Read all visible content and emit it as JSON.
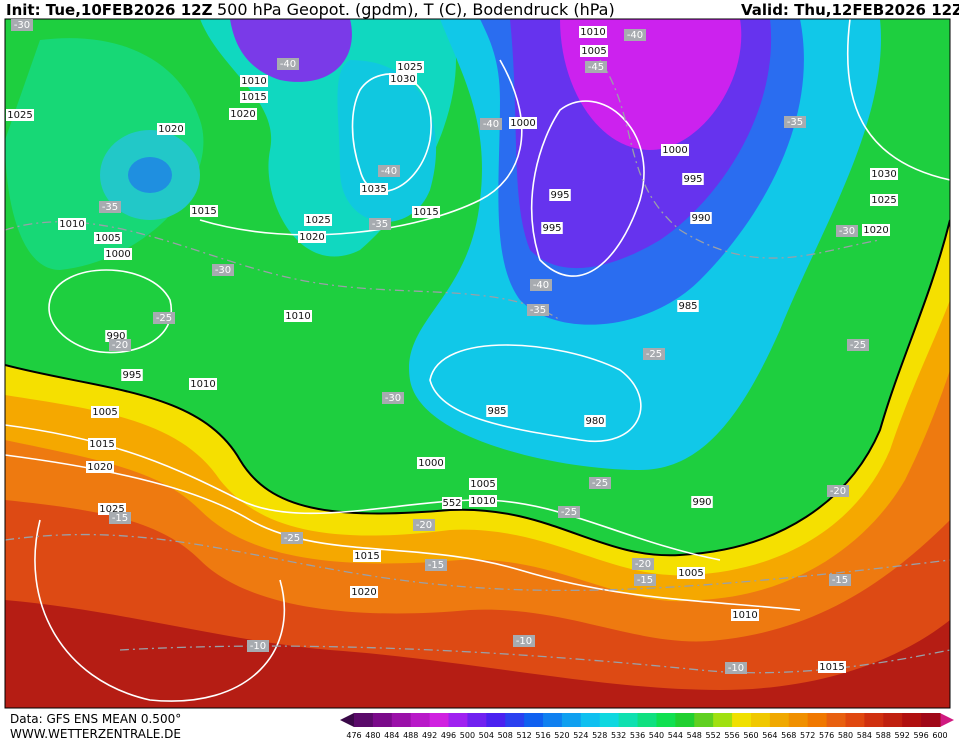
{
  "header": {
    "init": "Init: Tue,10FEB2026 12Z",
    "title": "500 hPa Geopot. (gpdm), T (C), Bodendruck (hPa)",
    "valid": "Valid: Thu,12FEB2026 12Z"
  },
  "footer": {
    "source": "Data: GFS ENS MEAN 0.500°",
    "website": "WWW.WETTERZENTRALE.DE"
  },
  "pressure_labels": [
    "1010",
    "1005",
    "1025",
    "1030",
    "1010",
    "1015",
    "1020",
    "1025",
    "1020",
    "1000",
    "1000",
    "995",
    "1030",
    "1025",
    "1035",
    "1015",
    "1015",
    "995",
    "990",
    "1025",
    "1020",
    "1010",
    "1005",
    "1000",
    "995",
    "1020",
    "985",
    "1010",
    "990",
    "995",
    "1010",
    "985",
    "980",
    "1005",
    "1015",
    "1020",
    "1000",
    "1005",
    "1010",
    "990",
    "1025",
    "1015",
    "1005",
    "1020",
    "1010",
    "1015"
  ],
  "temperature_labels": [
    "-30",
    "-40",
    "-40",
    "-45",
    "-35",
    "-40",
    "-40",
    "-35",
    "-35",
    "-30",
    "-30",
    "-40",
    "-35",
    "-25",
    "-20",
    "-25",
    "-25",
    "-30",
    "-25",
    "-20",
    "-25",
    "-20",
    "-25",
    "-15",
    "-15",
    "-20",
    "-15",
    "-15",
    "-10",
    "-10",
    "-10"
  ],
  "geopotential_labels": [
    "552"
  ],
  "colorbar": {
    "labels": [
      476,
      480,
      484,
      488,
      492,
      496,
      500,
      504,
      508,
      512,
      516,
      520,
      524,
      528,
      532,
      536,
      540,
      544,
      548,
      552,
      556,
      560,
      564,
      568,
      572,
      576,
      580,
      584,
      588,
      592,
      596,
      600
    ]
  }
}
